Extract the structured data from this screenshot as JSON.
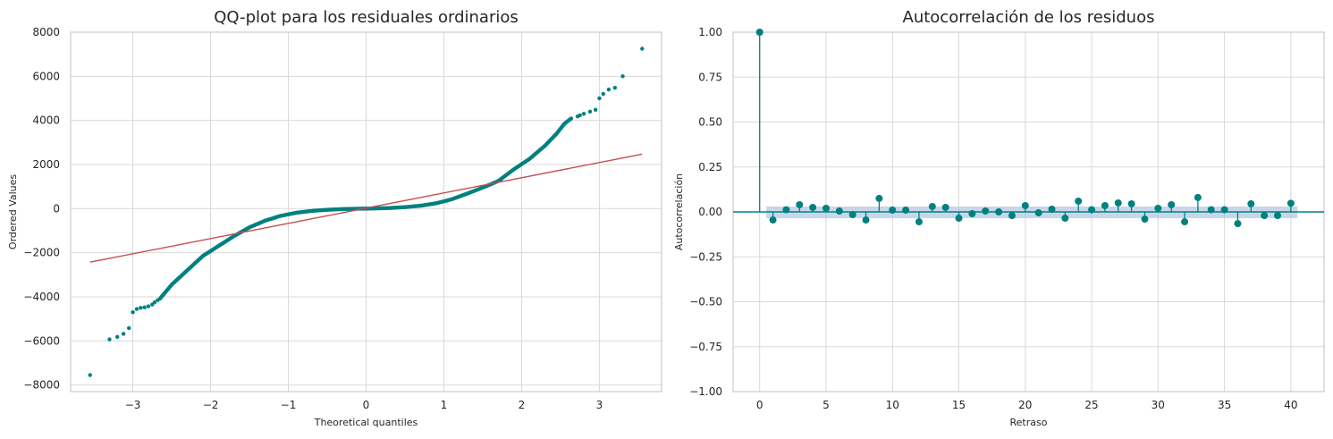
{
  "chart_data": [
    {
      "type": "scatter",
      "title": "QQ-plot para los residuales ordinarios",
      "xlabel": "Theoretical quantiles",
      "ylabel": "Ordered Values",
      "xlim": [
        -3.8,
        3.8
      ],
      "ylim": [
        -8300,
        8000
      ],
      "xticks": [
        -3,
        -2,
        -1,
        0,
        1,
        2,
        3
      ],
      "yticks": [
        -8000,
        -6000,
        -4000,
        -2000,
        0,
        2000,
        4000,
        6000,
        8000
      ],
      "grid": true,
      "colors": {
        "points": "#008080",
        "fit_line": "#c44e52"
      },
      "fit_line": {
        "x": [
          -3.55,
          3.55
        ],
        "y": [
          -2430,
          2470
        ]
      },
      "tail_points": {
        "x": [
          -3.55,
          -3.3,
          -3.2,
          -3.12,
          -3.05,
          -3.0,
          -2.95,
          -2.9,
          -2.85,
          -2.8,
          -2.75,
          -2.72,
          -2.68,
          2.72,
          2.75,
          2.8,
          2.88,
          2.95,
          3.0,
          3.05,
          3.12,
          3.2,
          3.3,
          3.55
        ],
        "y": [
          -7550,
          -5930,
          -5820,
          -5680,
          -5420,
          -4700,
          -4550,
          -4500,
          -4480,
          -4430,
          -4350,
          -4250,
          -4150,
          4180,
          4230,
          4300,
          4400,
          4480,
          5000,
          5200,
          5400,
          5480,
          6000,
          7250
        ]
      },
      "curve": {
        "x": [
          -2.65,
          -2.5,
          -2.3,
          -2.1,
          -1.9,
          -1.7,
          -1.5,
          -1.3,
          -1.1,
          -0.9,
          -0.7,
          -0.5,
          -0.3,
          -0.1,
          0,
          0.1,
          0.3,
          0.5,
          0.7,
          0.9,
          1.1,
          1.3,
          1.5,
          1.7,
          1.9,
          2.1,
          2.3,
          2.45,
          2.55,
          2.65
        ],
        "y": [
          -4080,
          -3450,
          -2800,
          -2150,
          -1700,
          -1250,
          -850,
          -550,
          -330,
          -190,
          -105,
          -55,
          -22,
          -6,
          0,
          6,
          25,
          65,
          130,
          240,
          420,
          680,
          950,
          1250,
          1780,
          2250,
          2850,
          3400,
          3850,
          4120
        ]
      }
    },
    {
      "type": "stem",
      "title": "Autocorrelación de los residuos",
      "xlabel": "Retraso",
      "ylabel": "Autocorrelación",
      "xlim": [
        -2,
        42.5
      ],
      "ylim": [
        -1.0,
        1.0
      ],
      "xticks": [
        0,
        5,
        10,
        15,
        20,
        25,
        30,
        35,
        40
      ],
      "yticks": [
        "-1.00",
        "-0.75",
        "-0.50",
        "-0.25",
        "0.00",
        "0.25",
        "0.50",
        "0.75",
        "1.00"
      ],
      "grid": true,
      "colors": {
        "stems": "#008080",
        "confidence_band": "#a9c2dd"
      },
      "confidence_band": [
        -0.035,
        0.03
      ],
      "lags": [
        0,
        1,
        2,
        3,
        4,
        5,
        6,
        7,
        8,
        9,
        10,
        11,
        12,
        13,
        14,
        15,
        16,
        17,
        18,
        19,
        20,
        21,
        22,
        23,
        24,
        25,
        26,
        27,
        28,
        29,
        30,
        31,
        32,
        33,
        34,
        35,
        36,
        37,
        38,
        39,
        40
      ],
      "values": [
        1.0,
        -0.045,
        0.012,
        0.04,
        0.025,
        0.02,
        0.005,
        -0.015,
        -0.045,
        0.075,
        0.01,
        0.01,
        -0.055,
        0.03,
        0.025,
        -0.035,
        -0.01,
        0.005,
        0.0,
        -0.02,
        0.035,
        -0.005,
        0.015,
        -0.035,
        0.06,
        0.012,
        0.035,
        0.05,
        0.045,
        -0.04,
        0.02,
        0.04,
        -0.055,
        0.08,
        0.012,
        0.012,
        -0.065,
        0.045,
        -0.02,
        -0.02,
        0.048
      ]
    }
  ]
}
